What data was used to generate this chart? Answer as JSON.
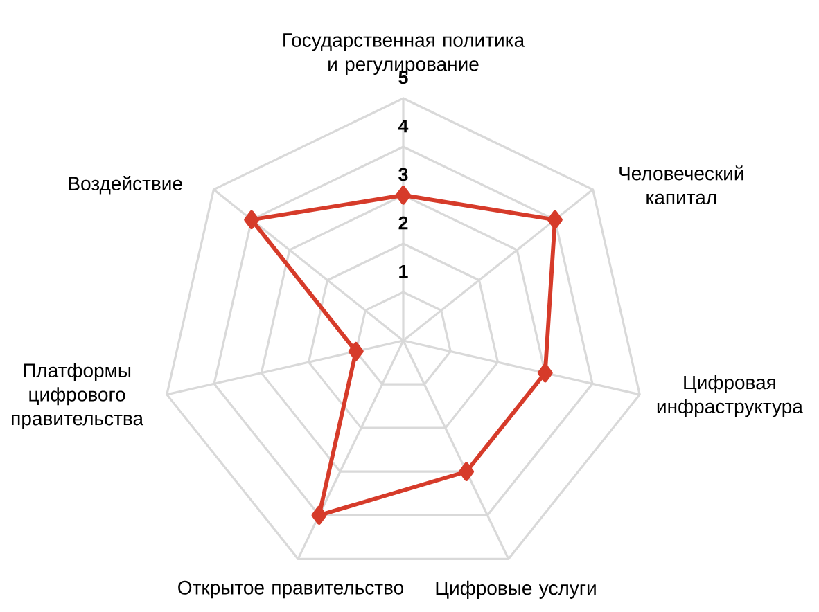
{
  "chart_data": {
    "type": "radar",
    "categories": [
      "Государственная политика и регулирование",
      "Человеческий капитал",
      "Цифровая инфраструктура",
      "Цифровые услуги",
      "Открытое правительство",
      "Платформы цифрового правительства",
      "Воздействие"
    ],
    "series": [
      {
        "color": "#d63b2a",
        "values": [
          3,
          4,
          3,
          3,
          4,
          1,
          4
        ]
      }
    ],
    "ylim": [
      0,
      5
    ],
    "yticks": [
      1,
      2,
      3,
      4,
      5
    ],
    "grid": true,
    "marker": "diamond",
    "line_style": "solid"
  }
}
